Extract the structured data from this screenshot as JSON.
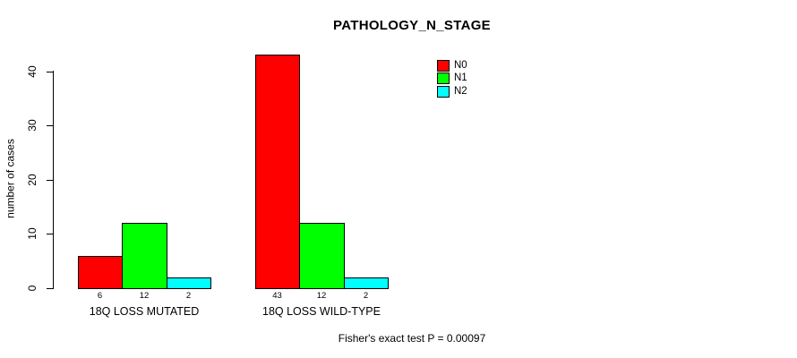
{
  "title": "PATHOLOGY_N_STAGE",
  "footnote": "Fisher's exact test P = 0.00097",
  "colors": {
    "background": "#FFFFFF",
    "axis": "#000000",
    "text": "#000000",
    "n0": "#FF0000",
    "n1": "#00FF00",
    "n2": "#00FFFF"
  },
  "chart_data": {
    "type": "bar",
    "title": "PATHOLOGY_N_STAGE",
    "categories": [
      "18Q LOSS MUTATED",
      "18Q LOSS WILD-TYPE"
    ],
    "series": [
      {
        "name": "N0",
        "color": "#FF0000",
        "values": [
          6,
          43
        ]
      },
      {
        "name": "N1",
        "color": "#00FF00",
        "values": [
          12,
          12
        ]
      },
      {
        "name": "N2",
        "color": "#00FFFF",
        "values": [
          2,
          2
        ]
      }
    ],
    "bar_value_labels": [
      [
        "6",
        "12",
        "2"
      ],
      [
        "43",
        "12",
        "2"
      ]
    ],
    "xlabel": "",
    "ylabel": "number of cases",
    "ylim": [
      0,
      43
    ],
    "yticks": [
      0,
      10,
      20,
      30,
      40
    ],
    "grid": false,
    "legend_position": "top-right",
    "legend_border": false,
    "annotation": "Fisher's exact test P = 0.00097"
  }
}
